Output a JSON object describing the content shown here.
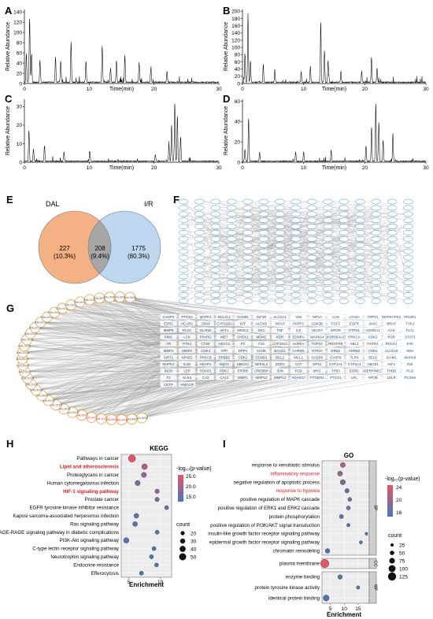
{
  "panels": {
    "A": "A",
    "B": "B",
    "C": "C",
    "D": "D",
    "E": "E",
    "F": "F",
    "G": "G",
    "H": "H",
    "I": "I"
  },
  "chromatograms": {
    "ylabel": "Relative Abundance",
    "xlabel": "Time(min)",
    "A": {
      "yticks": [
        "0",
        "20",
        "40",
        "60",
        "80",
        "100",
        "120",
        "140"
      ],
      "ymax": 145,
      "xticks": [
        "0",
        "10",
        "20",
        "30"
      ],
      "xmax": 30
    },
    "B": {
      "yticks": [
        "0",
        "20",
        "40",
        "60",
        "80",
        "100",
        "120",
        "140",
        "160",
        "180",
        "200"
      ],
      "ymax": 205,
      "xticks": [
        "0",
        "10",
        "20",
        "30"
      ],
      "xmax": 30
    },
    "C": {
      "yticks": [
        "0",
        "10",
        "20",
        "30"
      ],
      "ymax": 34,
      "xticks": [
        "0",
        "10",
        "20",
        "30"
      ],
      "xmax": 30
    },
    "D": {
      "yticks": [
        "0",
        "20",
        "40",
        "60"
      ],
      "ymax": 62,
      "xticks": [
        "0",
        "10",
        "20",
        "30"
      ],
      "xmax": 30
    }
  },
  "venn": {
    "left_label": "DAL",
    "right_label": "I/R",
    "left_only": "227",
    "left_pct": "(10.3%)",
    "overlap": "208",
    "overlap_pct": "(9.4%)",
    "right_only": "1775",
    "right_pct": "(80.3%)",
    "colors": {
      "left": "#f4b183",
      "right": "#bdd7ee",
      "overlap": "#a6a6a6"
    }
  },
  "ppi": {
    "node_stroke": "#4a90c8"
  },
  "network": {
    "drug_nodes": [
      "DAL0006",
      "DAL0007",
      "DAL0008",
      "DAL0009",
      "DAL0010",
      "DAL0011",
      "DAL0012",
      "DAL0013",
      "DAL0014",
      "DAL0015",
      "DAL0016",
      "DAL0017",
      "DAL0018",
      "DAL0019",
      "DAL0020",
      "DAL0021",
      "DAL0022",
      "DAL0023",
      "DAL0024",
      "DAL0025",
      "DAL0026",
      "DAL0027",
      "DAL0028",
      "DAL0029",
      "DAL0030",
      "DAL0031",
      "DAL0032",
      "DAL0033",
      "DAL0034",
      "DAL0035",
      "DAL0036",
      "DAL0037",
      "DAL0038",
      "DAL0039"
    ],
    "targets": [
      "CASP3",
      "PTGS2",
      "MAPK1",
      "BCL2L1",
      "CCNB1",
      "IGF1R",
      "SLC2A1",
      "VIM",
      "HIF1A",
      "CA9",
      "LTA4H",
      "TRPV1",
      "MAPKAPK2",
      "PIK3R1",
      "ESR1",
      "HCAR1",
      "CPA4",
      "CYP11B1",
      "KIT",
      "ALOX5",
      "NOS3",
      "PARP1",
      "GSK3B",
      "FGF2",
      "EGFR",
      "JAK2",
      "BRAF",
      "TYK2",
      "MMP9",
      "PLAU",
      "ELANE",
      "AKT1",
      "NR3C1",
      "SRC",
      "TNF",
      "IL6",
      "VEGFA",
      "MTOR",
      "PTPN1",
      "ADORA1",
      "ACE",
      "FLT1",
      "PIM1",
      "LCK",
      "PPARG",
      "MET",
      "CHEK1",
      "MDM2",
      "KDR",
      "EDNRA",
      "MAPK14",
      "HSP90AA1",
      "PRKCA",
      "CDK2",
      "PGR",
      "STAT3",
      "AR",
      "PTK2",
      "CTSK",
      "HDAC1",
      "F2",
      "F10",
      "CYP19A1",
      "AURKA",
      "TOP2A",
      "PDGFRB",
      "ABL1",
      "FGFR1",
      "ROCK1",
      "SYK",
      "MMP2",
      "MMP3",
      "CDK4",
      "APP",
      "DPP4",
      "ACHE",
      "BACE1",
      "CHRM1",
      "HTR2A",
      "DRD2",
      "ADRB2",
      "CNR1",
      "ALOX15",
      "XDH",
      "SIRT1",
      "NFKB1",
      "PRKCB",
      "ERBB2",
      "CDK1",
      "CCND1",
      "BCL2",
      "MCL1",
      "CASP8",
      "CASP9",
      "TLR4",
      "SELE",
      "ICAM1",
      "MAPK8",
      "MAPK3",
      "IL1B",
      "KEAP1",
      "NQO1",
      "HMOX1",
      "NFE2L2",
      "SOD1",
      "CAT",
      "GPX1",
      "CYP1A1",
      "CYP3A4",
      "ABCB1",
      "IGF1",
      "INS",
      "INSR",
      "LEP",
      "FOXO1",
      "PDK1",
      "EP300",
      "CREBBP",
      "JUN",
      "FOS",
      "MYC",
      "TP53",
      "EGR1",
      "SERPINE1",
      "THBD",
      "PLG",
      "F3",
      "KLK3",
      "CA2",
      "CA12",
      "MMP1",
      "MMP12",
      "MMP13",
      "ADAM17",
      "PTGER4",
      "PTGS1",
      "LPL",
      "APOB",
      "LDLR",
      "PCSK9",
      "CETP",
      "HMGCR"
    ],
    "edge_color": "#8c8c8c",
    "drug_node_stroke": "#e6a23c",
    "drug_highlight": [
      "DAL0008",
      "DAL0009",
      "DAL0010",
      "DAL0011",
      "DAL0012"
    ],
    "drug_highlight_color": "#e03030"
  },
  "kegg": {
    "title": "KEGG",
    "xlabel": "Enrichment",
    "legend_color_title": "-log₁₀(p-value)",
    "legend_size_title": "count",
    "color_ticks": [
      "25.0",
      "20.0",
      "15.0"
    ],
    "size_ticks": [
      "20",
      "30",
      "40",
      "50"
    ],
    "xticks": [
      5,
      10
    ],
    "xlim": [
      3.8,
      11.8
    ],
    "highlight_color": "#e31a1c",
    "terms": [
      {
        "name": "Pathways in cancer",
        "x": 5.5,
        "count": 50,
        "logp": 27,
        "highlight": false
      },
      {
        "name": "Lipid and atherosclerosis",
        "x": 7.5,
        "count": 35,
        "logp": 22,
        "highlight": true
      },
      {
        "name": "Proteoglycans in cancer",
        "x": 7.4,
        "count": 30,
        "logp": 20,
        "highlight": false
      },
      {
        "name": "Human cytomegalovirus infection",
        "x": 6.4,
        "count": 30,
        "logp": 17,
        "highlight": false
      },
      {
        "name": "HIF-1 signaling pathway",
        "x": 9.5,
        "count": 23,
        "logp": 19,
        "highlight": true
      },
      {
        "name": "Prostate cancer",
        "x": 9.5,
        "count": 22,
        "logp": 17,
        "highlight": false
      },
      {
        "name": "EGFR tyrosine kinase inhibitor resistance",
        "x": 11,
        "count": 20,
        "logp": 16,
        "highlight": false
      },
      {
        "name": "Kaposi sarcoma-associated herpesvirus infection",
        "x": 6.2,
        "count": 27,
        "logp": 15,
        "highlight": false
      },
      {
        "name": "Ras signaling pathway",
        "x": 6,
        "count": 27,
        "logp": 14,
        "highlight": false
      },
      {
        "name": "AGE-RAGE signaling pathway in diabetic complications",
        "x": 9.5,
        "count": 20,
        "logp": 15,
        "highlight": false
      },
      {
        "name": "PI3K-Akt signaling pathway",
        "x": 4.6,
        "count": 33,
        "logp": 14,
        "highlight": false
      },
      {
        "name": "C-type lectin receptor signaling pathway",
        "x": 9,
        "count": 20,
        "logp": 14,
        "highlight": false
      },
      {
        "name": "Neurotrophin signaling pathway",
        "x": 8.6,
        "count": 20,
        "logp": 13,
        "highlight": false
      },
      {
        "name": "Endocrine resistance",
        "x": 9.4,
        "count": 19,
        "logp": 13,
        "highlight": false
      },
      {
        "name": "Efferocytosis",
        "x": 7,
        "count": 20,
        "logp": 13,
        "highlight": false
      }
    ]
  },
  "go": {
    "title": "GO",
    "xlabel": "Enrichment",
    "legend_color_title": "-log₁₀(p-value)",
    "legend_size_title": "count",
    "color_ticks": [
      "24",
      "20",
      "16"
    ],
    "size_ticks": [
      "25",
      "50",
      "75",
      "100",
      "125"
    ],
    "xticks": [
      5,
      10,
      15
    ],
    "xlim": [
      2,
      19
    ],
    "highlight_color": "#e31a1c",
    "groups": [
      "BP",
      "CC",
      "MF"
    ],
    "terms": [
      {
        "name": "response to xenobiotic stimulus",
        "x": 9.5,
        "count": 60,
        "logp": 21,
        "highlight": false,
        "group": "BP"
      },
      {
        "name": "inflammatory response",
        "x": 8.5,
        "count": 60,
        "logp": 19,
        "highlight": true,
        "group": "BP"
      },
      {
        "name": "negative regulation of apoptotic process",
        "x": 9.5,
        "count": 65,
        "logp": 18,
        "highlight": false,
        "group": "BP"
      },
      {
        "name": "response to hypoxia",
        "x": 11,
        "count": 50,
        "logp": 17,
        "highlight": true,
        "group": "BP"
      },
      {
        "name": "positive regulation of MAPK cascade",
        "x": 12,
        "count": 40,
        "logp": 18,
        "highlight": false,
        "group": "BP"
      },
      {
        "name": "positive regulation of ERK1 and ERK2 cascade",
        "x": 11.5,
        "count": 40,
        "logp": 17,
        "highlight": false,
        "group": "BP"
      },
      {
        "name": "protein phosphorylation",
        "x": 9,
        "count": 45,
        "logp": 16,
        "highlight": false,
        "group": "BP"
      },
      {
        "name": "positive regulation of PI3K/AKT signal transduction",
        "x": 11.5,
        "count": 30,
        "logp": 15,
        "highlight": false,
        "group": "BP"
      },
      {
        "name": "insulin-like growth factor receptor signaling pathway",
        "x": 18,
        "count": 20,
        "logp": 14,
        "highlight": false,
        "group": "BP"
      },
      {
        "name": "epidermal growth factor receptor signaling pathway",
        "x": 16,
        "count": 25,
        "logp": 14,
        "highlight": false,
        "group": "BP"
      },
      {
        "name": "chromatin remodeling",
        "x": 4,
        "count": 55,
        "logp": 14,
        "highlight": false,
        "group": "BP"
      },
      {
        "name": "plasma membrane",
        "x": 3,
        "count": 125,
        "logp": 25,
        "highlight": false,
        "group": "CC"
      },
      {
        "name": "enzyme binding",
        "x": 8.5,
        "count": 50,
        "logp": 15,
        "highlight": false,
        "group": "MF"
      },
      {
        "name": "protein tyrosine kinase activity",
        "x": 15,
        "count": 30,
        "logp": 15,
        "highlight": false,
        "group": "MF"
      },
      {
        "name": "identical protein binding",
        "x": 3.5,
        "count": 80,
        "logp": 14,
        "highlight": false,
        "group": "MF"
      }
    ]
  }
}
